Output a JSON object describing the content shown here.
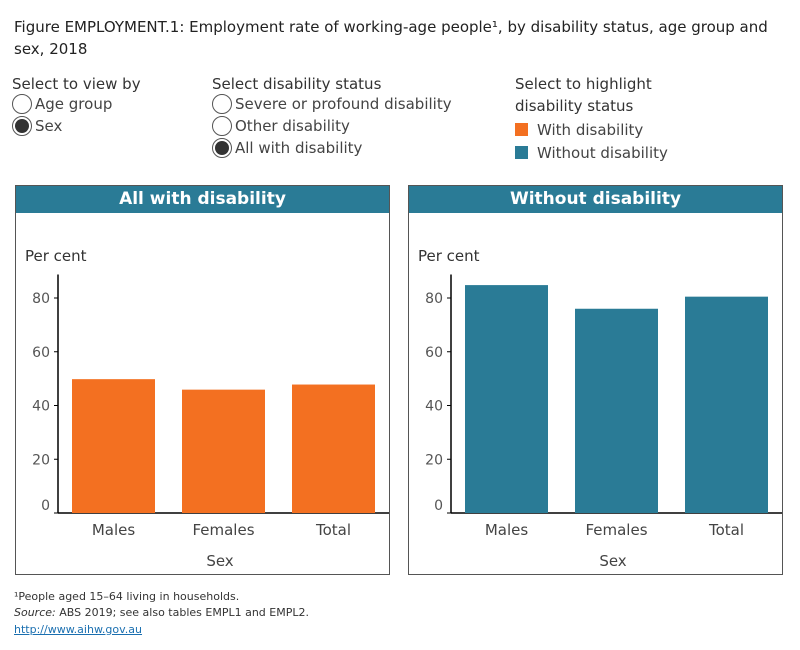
{
  "title": "Figure EMPLOYMENT.1: Employment rate of working-age people¹, by disability status, age group and sex, 2018",
  "view_by": {
    "label": "Select to view by",
    "options": [
      {
        "label": "Age group",
        "selected": false
      },
      {
        "label": "Sex",
        "selected": true
      }
    ]
  },
  "disability_status": {
    "label": "Select disability status",
    "options": [
      {
        "label": "Severe or profound disability",
        "selected": false
      },
      {
        "label": "Other disability",
        "selected": false
      },
      {
        "label": "All with disability",
        "selected": true
      }
    ]
  },
  "highlight": {
    "label_line1": "Select to highlight",
    "label_line2": "disability status",
    "items": [
      {
        "label": "With disability",
        "color": "#f37021"
      },
      {
        "label": "Without disability",
        "color": "#2a7b96"
      }
    ]
  },
  "chart_data": [
    {
      "type": "bar",
      "title": "All with disability",
      "ylabel": "Per cent",
      "xlabel": "Sex",
      "categories": [
        "Males",
        "Females",
        "Total"
      ],
      "values": [
        49.8,
        45.9,
        47.8
      ],
      "ylim": [
        0,
        88
      ],
      "yticks": [
        0,
        20,
        40,
        60,
        80
      ],
      "color": "#f37021",
      "grid": false
    },
    {
      "type": "bar",
      "title": "Without disability",
      "ylabel": "Per cent",
      "xlabel": "Sex",
      "categories": [
        "Males",
        "Females",
        "Total"
      ],
      "values": [
        84.8,
        76.0,
        80.5
      ],
      "ylim": [
        0,
        88
      ],
      "yticks": [
        0,
        20,
        40,
        60,
        80
      ],
      "color": "#2a7b96",
      "grid": false
    }
  ],
  "footer": {
    "note": "¹People aged 15–64 living in households.",
    "source_label": "Source:",
    "source_text": " ABS 2019; see also tables EMPL1 and EMPL2.",
    "link": "http://www.aihw.gov.au"
  }
}
